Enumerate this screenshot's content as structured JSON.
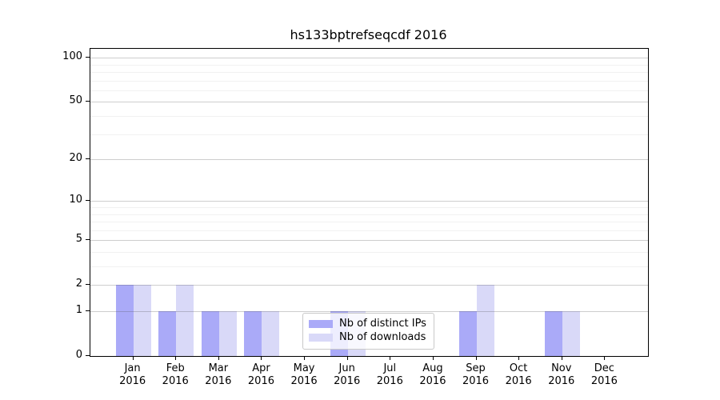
{
  "chart_data": {
    "type": "bar",
    "title": "hs133bptrefseqcdf 2016",
    "scale": "log1p",
    "categories": [
      "Jan",
      "Feb",
      "Mar",
      "Apr",
      "May",
      "Jun",
      "Jul",
      "Aug",
      "Sep",
      "Oct",
      "Nov",
      "Dec"
    ],
    "category_year": "2016",
    "series": [
      {
        "name": "Nb of distinct IPs",
        "color": "#aaaaf8",
        "values": [
          2,
          1,
          1,
          1,
          0,
          1,
          0,
          0,
          1,
          0,
          1,
          0
        ]
      },
      {
        "name": "Nb of downloads",
        "color": "#d9d9f8",
        "values": [
          2,
          2,
          1,
          1,
          0,
          1,
          0,
          0,
          2,
          0,
          1,
          0
        ]
      }
    ],
    "y_major_ticks": [
      0,
      1,
      2,
      5,
      10,
      20,
      50,
      100
    ],
    "y_minor_ticks": [
      3,
      4,
      6,
      7,
      8,
      9,
      30,
      40,
      60,
      70,
      80,
      90
    ],
    "y_axis_top_value": 115,
    "legend_position": "lower center",
    "grid": "on",
    "colors": {
      "axis": "#000000",
      "major_grid": "#cccccc",
      "minor_grid": "#ebebeb",
      "background": "#ffffff"
    }
  }
}
